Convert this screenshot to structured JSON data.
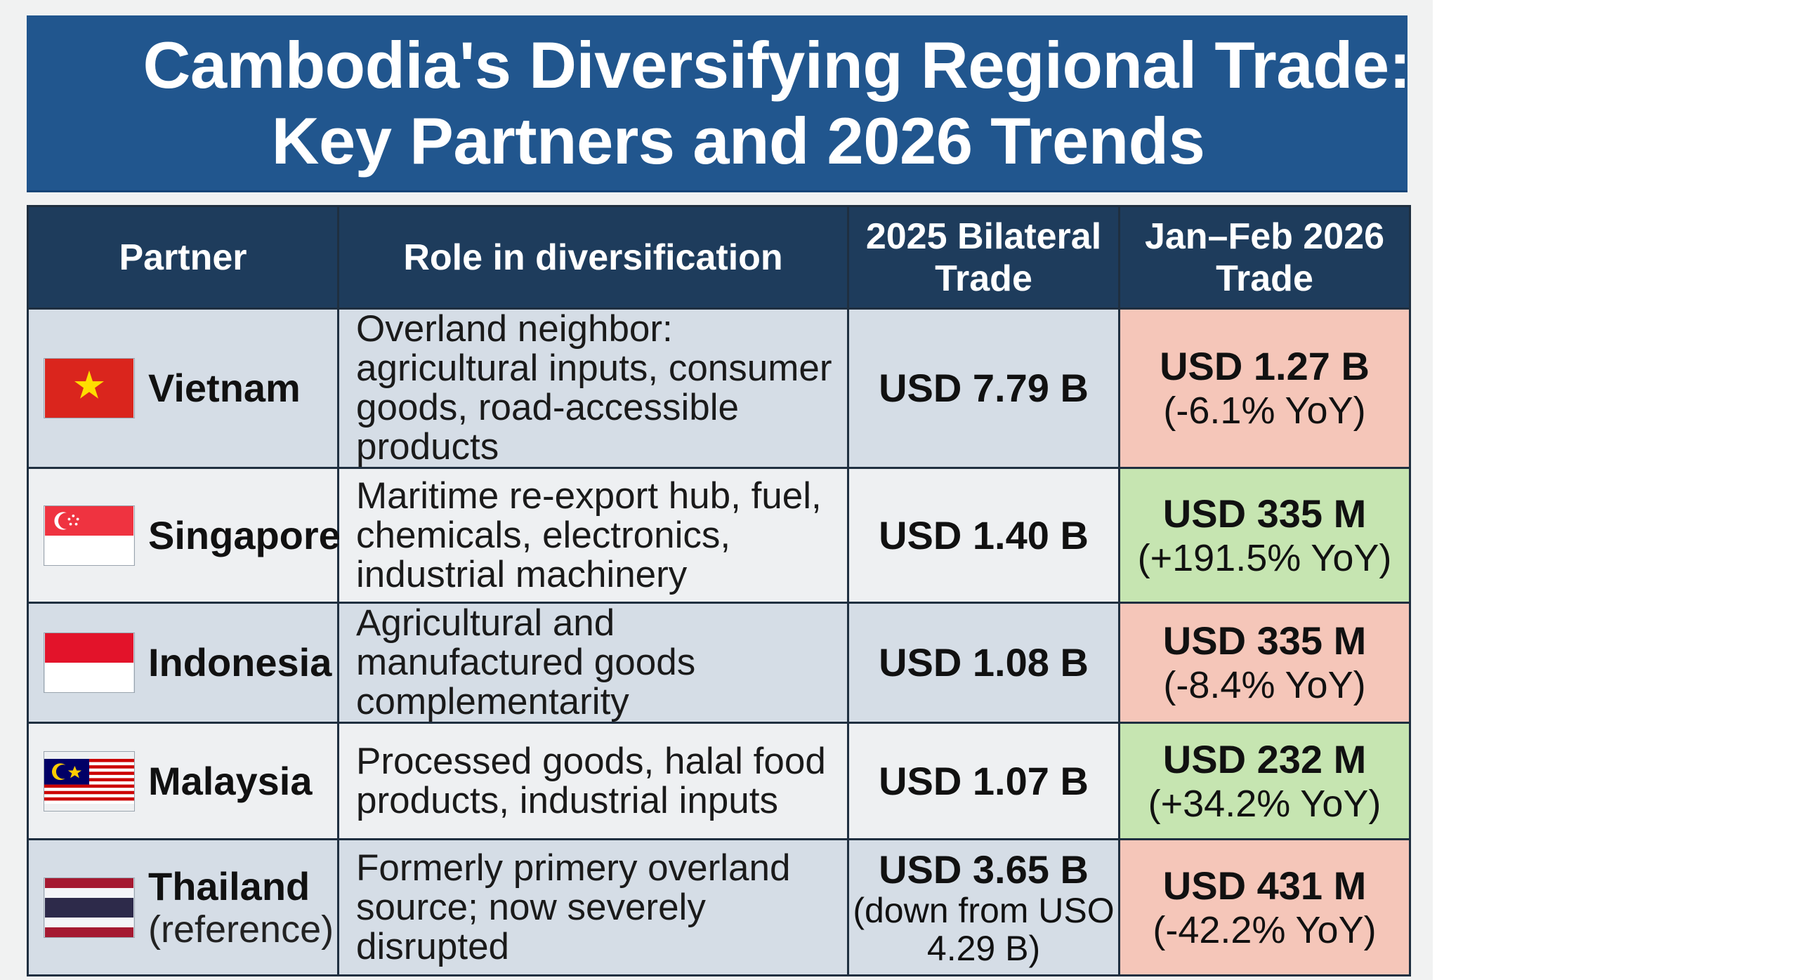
{
  "title": {
    "line1": "Cambodia's Diversifying Regional Trade:",
    "line2": "Key Partners and 2026 Trends"
  },
  "table": {
    "headers": {
      "partner": "Partner",
      "role": "Role in diversification",
      "trade_2025": "2025 Bilateral Trade",
      "trade_2026": "Jan–Feb 2026 Trade"
    },
    "rows": [
      {
        "partner": "Vietnam",
        "flag": "vietnam-flag",
        "role": "Overland neighbor: agricultural inputs, consumer goods, road-accessible products",
        "trade_2025": "USD 7.79 B",
        "trade_2026": "USD 1.27 B",
        "change_2026": "(-6.1% YoY)",
        "trend": "negative"
      },
      {
        "partner": "Singapore",
        "flag": "singapore-flag",
        "role": "Maritime re-export hub, fuel, chemicals, electronics, industrial machinery",
        "trade_2025": "USD 1.40 B",
        "trade_2026": "USD 335 M",
        "change_2026": "(+191.5% YoY)",
        "trend": "positive"
      },
      {
        "partner": "Indonesia",
        "flag": "indonesia-flag",
        "role": "Agricultural and manufactured goods complementarity",
        "trade_2025": "USD 1.08 B",
        "trade_2026": "USD 335 M",
        "change_2026": "(-8.4% YoY)",
        "trend": "negative"
      },
      {
        "partner": "Malaysia",
        "flag": "malaysia-flag",
        "role": "Processed goods, halal food products, industrial inputs",
        "trade_2025": "USD 1.07 B",
        "trade_2026": "USD 232 M",
        "change_2026": "(+34.2% YoY)",
        "trend": "positive"
      },
      {
        "partner": "Thailand",
        "partner_note": "(reference)",
        "flag": "thailand-flag",
        "role": "Formerly primery overland source; now severely disrupted",
        "trade_2025": "USD 3.65 B",
        "trade_2025_note": "(down from USO 4.29 B)",
        "trade_2026": "USD 431 M",
        "change_2026": "(-42.2% YoY)",
        "trend": "negative"
      }
    ]
  },
  "colors": {
    "title_background": "#21568e",
    "header_background": "#1e3c5c",
    "negative_cell": "#f5c6b9",
    "positive_cell": "#c6e5b1",
    "row_shade": "#d5dde6",
    "row_light": "#eef0f2"
  }
}
